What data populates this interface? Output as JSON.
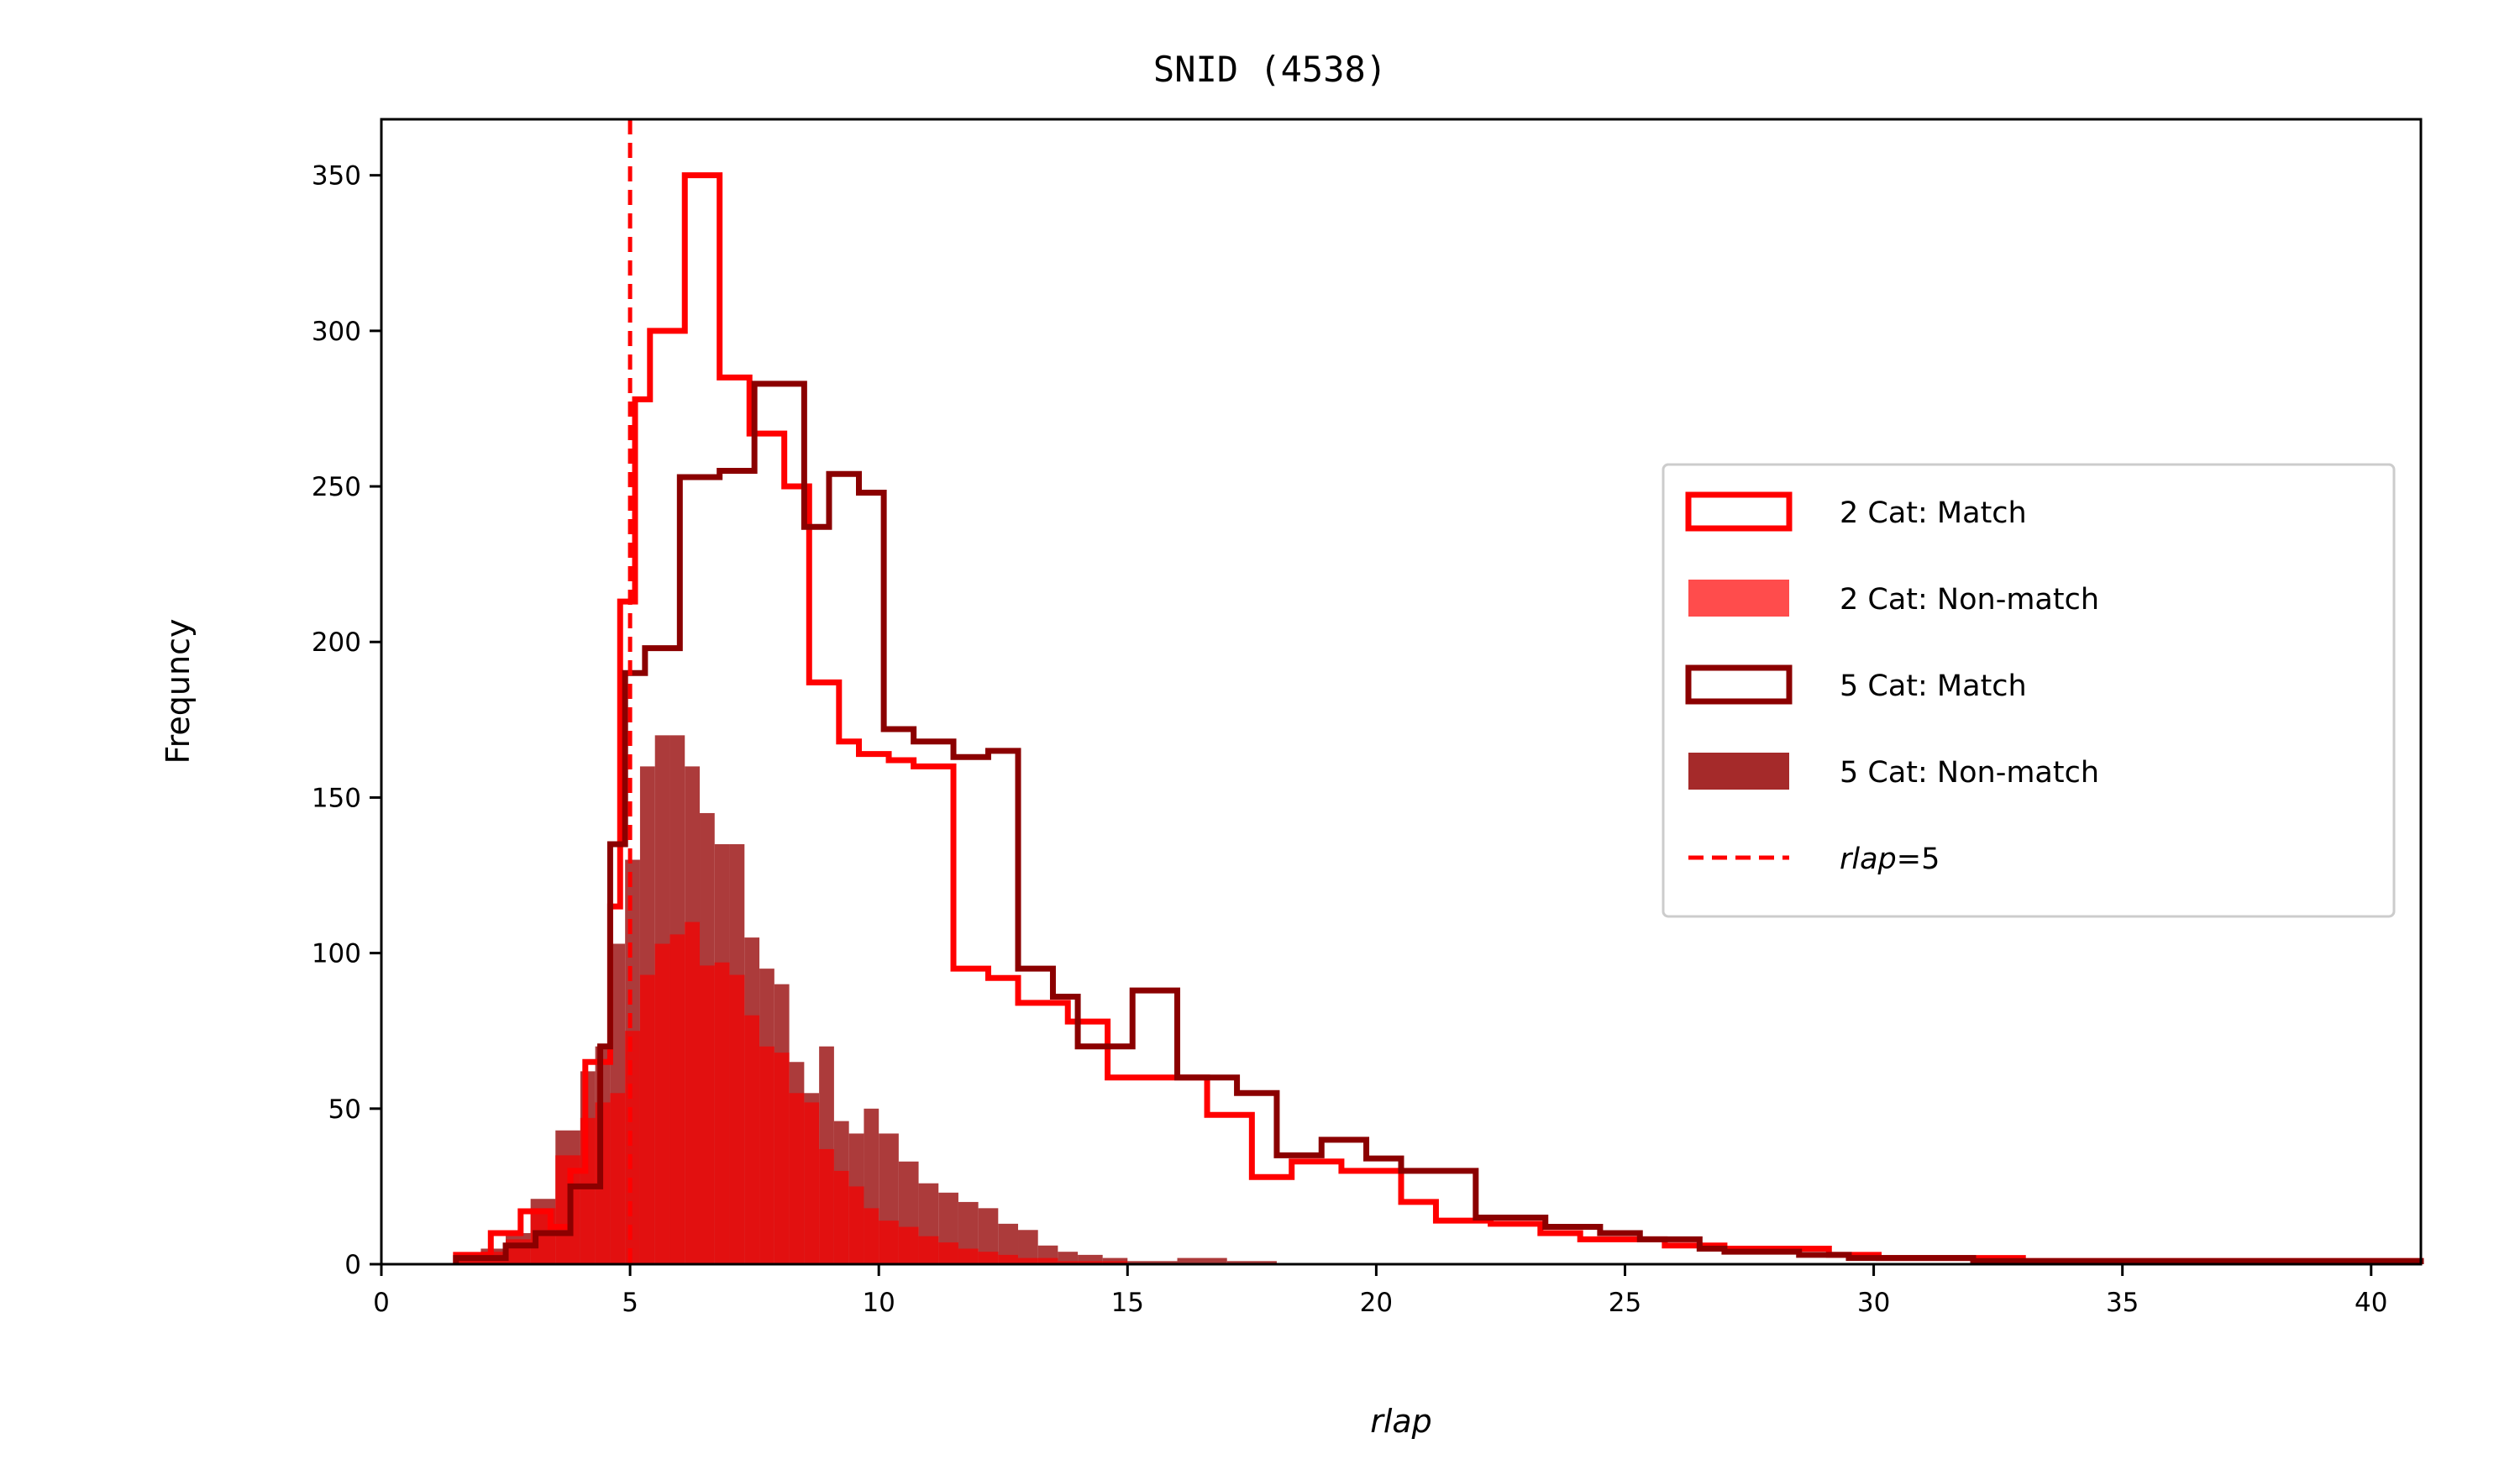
{
  "chart_data": {
    "type": "histogram",
    "title": "SNID (4538)",
    "xlabel": "rlap",
    "ylabel": "Frequncy",
    "xlim": [
      0,
      41
    ],
    "ylim": [
      0,
      368
    ],
    "xticks": [
      0,
      5,
      10,
      15,
      20,
      25,
      30,
      35,
      40
    ],
    "yticks": [
      0,
      50,
      100,
      150,
      200,
      250,
      300,
      350
    ],
    "legend_position": "center-right",
    "colors": {
      "two_cat_match": "#ff0000",
      "two_cat_nonmatch": "#ff4c4c",
      "five_cat_match": "#8b0000",
      "five_cat_nonmatch": "#a52a2a",
      "threshold": "#ff0000",
      "overlap_fill": "#e60d0d"
    },
    "threshold": {
      "x": 5,
      "label_italic": "rlap",
      "label_rest": "=5"
    },
    "series": [
      {
        "name": "2 Cat: Match",
        "style": "step",
        "bin_edges": [
          1.5,
          2.2,
          2.8,
          3.4,
          3.8,
          4.1,
          4.6,
          4.8,
          5.1,
          5.4,
          6.1,
          6.8,
          7.4,
          8.1,
          8.6,
          9.2,
          9.6,
          10.2,
          10.7,
          11.5,
          12.2,
          12.8,
          13.8,
          14.6,
          15.1,
          16.0,
          16.6,
          17.0,
          17.5,
          18.3,
          19.3,
          20.5,
          21.2,
          22.3,
          23.3,
          24.1,
          25.8,
          27.0,
          28.0,
          29.1,
          30.1,
          32.0,
          33.0,
          35.0,
          37.0,
          39.0,
          41.0
        ],
        "counts": [
          3,
          10,
          17,
          12,
          30,
          65,
          115,
          213,
          278,
          300,
          350,
          285,
          267,
          250,
          187,
          168,
          164,
          162,
          160,
          95,
          92,
          84,
          78,
          60,
          60,
          60,
          48,
          48,
          28,
          33,
          30,
          20,
          14,
          13,
          10,
          8,
          6,
          5,
          5,
          3,
          2,
          2,
          1,
          1,
          1,
          1
        ]
      },
      {
        "name": "2 Cat: Non-match",
        "style": "filled",
        "bin_edges": [
          1.5,
          2.0,
          2.5,
          3.0,
          3.5,
          4.0,
          4.3,
          4.6,
          4.9,
          5.2,
          5.5,
          5.8,
          6.1,
          6.4,
          6.7,
          7.0,
          7.3,
          7.6,
          7.9,
          8.2,
          8.5,
          8.8,
          9.1,
          9.4,
          9.7,
          10.0,
          10.4,
          10.8,
          11.2,
          11.6,
          12.0,
          12.4,
          12.8,
          13.2,
          13.6,
          14.0,
          14.5,
          15.0,
          16.0,
          17.0
        ],
        "counts": [
          2,
          4,
          8,
          18,
          35,
          47,
          52,
          55,
          75,
          93,
          103,
          106,
          110,
          96,
          97,
          93,
          80,
          70,
          68,
          55,
          52,
          37,
          30,
          25,
          18,
          14,
          12,
          9,
          7,
          5,
          4,
          3,
          2,
          2,
          1,
          1,
          1,
          0,
          0
        ]
      },
      {
        "name": "5 Cat: Match",
        "style": "step",
        "bin_edges": [
          1.5,
          2.5,
          3.1,
          3.8,
          4.4,
          4.6,
          4.9,
          5.3,
          6.0,
          6.8,
          7.5,
          7.6,
          8.5,
          9.0,
          9.6,
          10.1,
          10.7,
          11.5,
          12.2,
          12.8,
          13.5,
          14.0,
          14.5,
          15.1,
          16.0,
          17.2,
          18.0,
          18.9,
          19.8,
          20.5,
          22.0,
          23.4,
          24.5,
          25.3,
          26.5,
          27.0,
          28.5,
          29.5,
          30.7,
          32.0,
          33.5,
          35.0,
          37.0,
          39.0,
          41.0
        ],
        "counts": [
          2,
          6,
          10,
          25,
          70,
          135,
          190,
          198,
          253,
          255,
          283,
          283,
          237,
          254,
          248,
          172,
          168,
          163,
          165,
          95,
          86,
          70,
          70,
          88,
          60,
          55,
          35,
          40,
          34,
          30,
          15,
          12,
          10,
          8,
          5,
          4,
          3,
          2,
          2,
          1,
          1,
          1,
          1,
          1
        ]
      },
      {
        "name": "5 Cat: Non-match",
        "style": "filled",
        "bin_edges": [
          1.5,
          2.0,
          2.5,
          3.0,
          3.5,
          4.0,
          4.3,
          4.6,
          4.9,
          5.2,
          5.5,
          5.8,
          6.1,
          6.4,
          6.7,
          7.0,
          7.3,
          7.6,
          7.9,
          8.2,
          8.5,
          8.8,
          9.1,
          9.4,
          9.7,
          10.0,
          10.4,
          10.8,
          11.2,
          11.6,
          12.0,
          12.4,
          12.8,
          13.2,
          13.6,
          14.0,
          14.5,
          15.0,
          16.0,
          17.0,
          18.0
        ],
        "counts": [
          2,
          5,
          10,
          21,
          43,
          62,
          70,
          103,
          130,
          160,
          170,
          170,
          160,
          145,
          135,
          135,
          105,
          95,
          90,
          65,
          55,
          70,
          46,
          42,
          50,
          42,
          33,
          26,
          23,
          20,
          18,
          13,
          11,
          6,
          4,
          3,
          2,
          1,
          2,
          1
        ]
      }
    ],
    "legend": [
      {
        "label": "2 Cat: Match",
        "style": "outline",
        "color": "#ff0000"
      },
      {
        "label": "2 Cat: Non-match",
        "style": "filled",
        "color": "#ff4c4c"
      },
      {
        "label": "5 Cat: Match",
        "style": "outline",
        "color": "#8b0000"
      },
      {
        "label": "5 Cat: Non-match",
        "style": "filled",
        "color": "#a52a2a"
      },
      {
        "label": "rlap=5",
        "style": "dashed",
        "color": "#ff0000"
      }
    ]
  }
}
